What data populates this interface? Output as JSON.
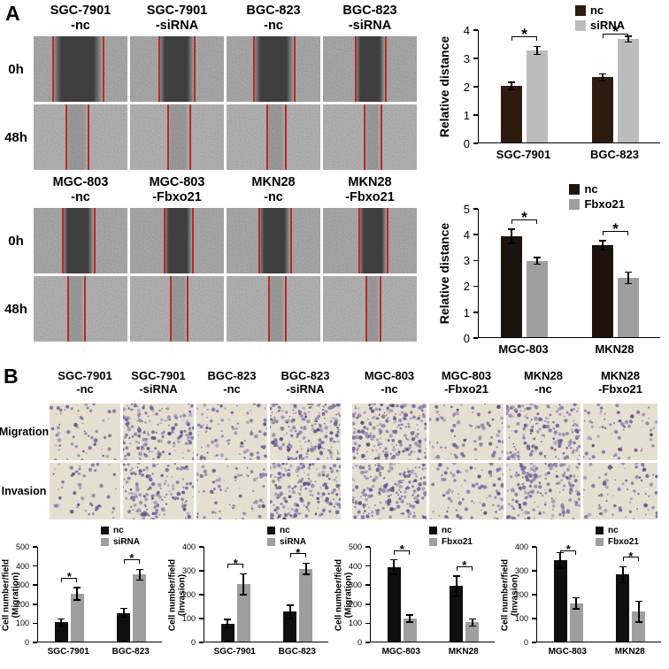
{
  "panelA": {
    "label": "A",
    "row_labels": [
      "0h",
      "48h"
    ],
    "groups": [
      {
        "columns": [
          "SGC-7901\n-nc",
          "SGC-7901\n-siRNA",
          "BGC-823\n-nc",
          "BGC-823\n-siRNA"
        ]
      },
      {
        "columns": [
          "MGC-803\n-nc",
          "MGC-803\n-Fbxo21",
          "MKN28\n-nc",
          "MKN28\n-Fbxo21"
        ]
      }
    ]
  },
  "panelB": {
    "label": "B",
    "row_labels": [
      "Migration",
      "Invasion"
    ],
    "groups": [
      {
        "columns": [
          "SGC-7901\n-nc",
          "SGC-7901\n-siRNA",
          "BGC-823\n-nc",
          "BGC-823\n-siRNA"
        ]
      },
      {
        "columns": [
          "MGC-803\n-nc",
          "MGC-803\n-Fbxo21",
          "MKN28\n-nc",
          "MKN28\n-Fbxo21"
        ]
      }
    ]
  },
  "chart_data": [
    {
      "id": "A-top",
      "type": "bar",
      "title": "",
      "categories": [
        "SGC-7901",
        "BGC-823"
      ],
      "series": [
        {
          "name": "nc",
          "color": "#2e1b10",
          "values": [
            2.0,
            2.3
          ],
          "errors": [
            0.1,
            0.1
          ]
        },
        {
          "name": "siRNA",
          "color": "#bcbcbc",
          "values": [
            3.25,
            3.65
          ],
          "errors": [
            0.12,
            0.08
          ]
        }
      ],
      "ylabel": "Relative distance",
      "ylim": [
        0,
        4
      ],
      "yticks": [
        0,
        1,
        2,
        3,
        4
      ],
      "significance": [
        {
          "category": "SGC-7901",
          "label": "*"
        },
        {
          "category": "BGC-823",
          "label": "*"
        }
      ],
      "legend_position": "top-right",
      "grid": false
    },
    {
      "id": "A-bottom",
      "type": "bar",
      "title": "",
      "categories": [
        "MGC-803",
        "MKN28"
      ],
      "series": [
        {
          "name": "nc",
          "color": "#1c130d",
          "values": [
            3.9,
            3.55
          ],
          "errors": [
            0.25,
            0.15
          ]
        },
        {
          "name": "Fbxo21",
          "color": "#9e9e9e",
          "values": [
            2.95,
            2.3
          ],
          "errors": [
            0.1,
            0.2
          ]
        }
      ],
      "ylabel": "Relative distance",
      "ylim": [
        0,
        5
      ],
      "yticks": [
        0,
        1,
        2,
        3,
        4,
        5
      ],
      "significance": [
        {
          "category": "MGC-803",
          "label": "*"
        },
        {
          "category": "MKN28",
          "label": "*"
        }
      ],
      "legend_position": "top-right",
      "grid": false
    },
    {
      "id": "B-migration-siRNA",
      "type": "bar",
      "title": "",
      "categories": [
        "SGC-7901",
        "BGC-823"
      ],
      "series": [
        {
          "name": "nc",
          "color": "#0f0f0f",
          "values": [
            100,
            150
          ],
          "errors": [
            15,
            20
          ]
        },
        {
          "name": "siRNA",
          "color": "#9e9e9e",
          "values": [
            250,
            350
          ],
          "errors": [
            30,
            25
          ]
        }
      ],
      "ylabel": "Cell number/field\n(Migration)",
      "ylim": [
        0,
        500
      ],
      "yticks": [
        0,
        100,
        200,
        300,
        400,
        500
      ],
      "significance": [
        {
          "category": "SGC-7901",
          "label": "*"
        },
        {
          "category": "BGC-823",
          "label": "*"
        }
      ],
      "legend_position": "top-right",
      "grid": false
    },
    {
      "id": "B-invasion-siRNA",
      "type": "bar",
      "title": "",
      "categories": [
        "SGC-7901",
        "BGC-823"
      ],
      "series": [
        {
          "name": "nc",
          "color": "#0f0f0f",
          "values": [
            75,
            125
          ],
          "errors": [
            15,
            25
          ]
        },
        {
          "name": "siRNA",
          "color": "#9e9e9e",
          "values": [
            240,
            305
          ],
          "errors": [
            40,
            20
          ]
        }
      ],
      "ylabel": "Cell number/field\n(Invasion)",
      "ylim": [
        0,
        400
      ],
      "yticks": [
        0,
        100,
        200,
        300,
        400
      ],
      "significance": [
        {
          "category": "SGC-7901",
          "label": "*"
        },
        {
          "category": "BGC-823",
          "label": "*"
        }
      ],
      "legend_position": "top-right",
      "grid": false
    },
    {
      "id": "B-migration-Fbxo21",
      "type": "bar",
      "title": "",
      "categories": [
        "MGC-803",
        "MKN28"
      ],
      "series": [
        {
          "name": "nc",
          "color": "#0f0f0f",
          "values": [
            390,
            290
          ],
          "errors": [
            35,
            50
          ]
        },
        {
          "name": "Fbxo21",
          "color": "#9e9e9e",
          "values": [
            120,
            100
          ],
          "errors": [
            15,
            15
          ]
        }
      ],
      "ylabel": "Cell number/field\n(Migration)",
      "ylim": [
        0,
        500
      ],
      "yticks": [
        0,
        100,
        200,
        300,
        400,
        500
      ],
      "significance": [
        {
          "category": "MGC-803",
          "label": "*"
        },
        {
          "category": "MKN28",
          "label": "*"
        }
      ],
      "legend_position": "top-right",
      "grid": false
    },
    {
      "id": "B-invasion-Fbxo21",
      "type": "bar",
      "title": "",
      "categories": [
        "MGC-803",
        "MKN28"
      ],
      "series": [
        {
          "name": "nc",
          "color": "#0f0f0f",
          "values": [
            340,
            280
          ],
          "errors": [
            30,
            30
          ]
        },
        {
          "name": "Fbxo21",
          "color": "#9e9e9e",
          "values": [
            160,
            125
          ],
          "errors": [
            20,
            40
          ]
        }
      ],
      "ylabel": "Cell number/field\n(Invasion)",
      "ylim": [
        0,
        400
      ],
      "yticks": [
        0,
        100,
        200,
        300,
        400
      ],
      "significance": [
        {
          "category": "MGC-803",
          "label": "*"
        },
        {
          "category": "MKN28",
          "label": "*"
        }
      ],
      "legend_position": "top-right",
      "grid": false
    }
  ],
  "colors": {
    "nc_dark": "#1c130d",
    "sirna_gray": "#bcbcbc",
    "fbxo21_gray": "#9e9e9e",
    "wound_edge_red": "#b92b21",
    "transwell_background": "#eae4d4",
    "cell_stain_purple": "#5c4b8d"
  }
}
